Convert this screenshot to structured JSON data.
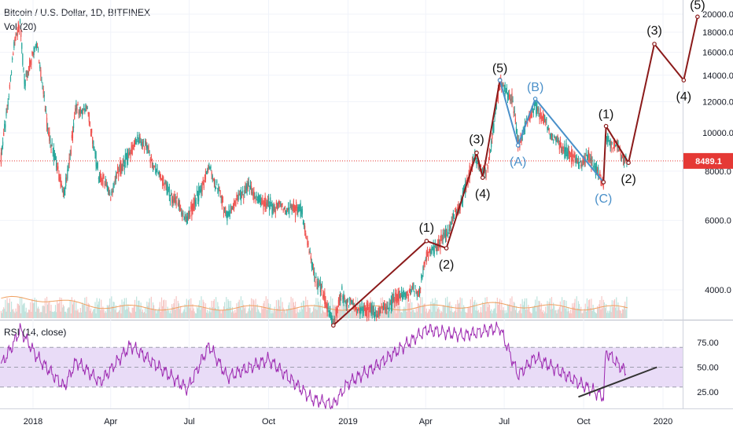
{
  "header": {
    "symbol_line": "Bitcoin / U.S. Dollar, 1D, BITFINEX",
    "volume_label": "Vol (20)",
    "rsi_label": "RSI (14, close)"
  },
  "colors": {
    "candle_up": "#26a69a",
    "candle_down": "#ef5350",
    "wave_main": "#8b1a1a",
    "wave_corrective": "#4a90c9",
    "rsi_line": "#9c27b0",
    "rsi_band": "#e9dcf7",
    "vol_ma": "#f0a060",
    "price_marker": "#e53935",
    "trendline": "#333333"
  },
  "chart_data": [
    {
      "type": "line",
      "title": "Bitcoin / U.S. Dollar, 1D, BITFINEX",
      "scale": "log",
      "ylim": [
        3200,
        20800
      ],
      "y_ticks": [
        4000,
        6000,
        8000,
        10000,
        12000,
        14000,
        16000,
        18000,
        20000
      ],
      "y_tick_labels": [
        "4000.0",
        "6000.0",
        "8000.0",
        "10000.0",
        "12000.0",
        "14000.0",
        "16000.0",
        "18000.0",
        "20000.0"
      ],
      "x_ticks": [
        "2018",
        "Apr",
        "Jul",
        "Oct",
        "2019",
        "Apr",
        "Jul",
        "Oct",
        "2020"
      ],
      "x_tick_dates": [
        "2018-01-01",
        "2018-04-01",
        "2018-07-01",
        "2018-10-01",
        "2019-01-01",
        "2019-04-01",
        "2019-07-01",
        "2019-10-01",
        "2020-01-01"
      ],
      "price_series": {
        "name": "BTCUSD",
        "x": [
          "2017-11-25",
          "2017-12-10",
          "2017-12-17",
          "2017-12-22",
          "2018-01-06",
          "2018-01-17",
          "2018-02-06",
          "2018-02-20",
          "2018-03-05",
          "2018-03-18",
          "2018-04-01",
          "2018-04-12",
          "2018-05-05",
          "2018-06-01",
          "2018-06-29",
          "2018-07-25",
          "2018-08-14",
          "2018-09-05",
          "2018-09-25",
          "2018-10-15",
          "2018-11-08",
          "2018-11-20",
          "2018-12-15",
          "2018-12-25",
          "2019-01-10",
          "2019-02-07",
          "2019-03-01",
          "2019-03-25",
          "2019-04-03",
          "2019-04-20",
          "2019-05-10",
          "2019-05-28",
          "2019-06-10",
          "2019-06-26",
          "2019-07-10",
          "2019-07-17",
          "2019-08-06",
          "2019-08-29",
          "2019-09-24",
          "2019-10-10",
          "2019-10-24",
          "2019-10-26",
          "2019-11-05",
          "2019-11-20"
        ],
        "y": [
          8500,
          16500,
          19300,
          13500,
          17000,
          10500,
          6900,
          11500,
          11500,
          7900,
          7000,
          8100,
          9800,
          7500,
          6000,
          8200,
          6200,
          7300,
          6600,
          6500,
          6400,
          4600,
          3300,
          3900,
          3600,
          3500,
          3850,
          4050,
          4950,
          5300,
          6500,
          8700,
          7800,
          13400,
          12200,
          9400,
          11800,
          9600,
          8400,
          8600,
          7400,
          9800,
          9400,
          8500
        ]
      },
      "last_price_label": "8489.1",
      "last_price": 8489.1,
      "wave_count_main": {
        "points": [
          {
            "label": "",
            "date": "2018-12-15",
            "price": 3250
          },
          {
            "label": "(1)",
            "date": "2019-04-02",
            "price": 5320
          },
          {
            "label": "(2)",
            "date": "2019-04-25",
            "price": 5100
          },
          {
            "label": "(3)",
            "date": "2019-05-30",
            "price": 8900
          },
          {
            "label": "(4)",
            "date": "2019-06-06",
            "price": 7700
          },
          {
            "label": "(5)",
            "date": "2019-06-26",
            "price": 13600
          }
        ]
      },
      "wave_count_corrective": {
        "points": [
          {
            "label": "(5)",
            "date": "2019-06-26",
            "price": 13600
          },
          {
            "label": "(A)",
            "date": "2019-07-17",
            "price": 9300
          },
          {
            "label": "(B)",
            "date": "2019-08-06",
            "price": 12200
          },
          {
            "label": "(C)",
            "date": "2019-10-24",
            "price": 7500
          }
        ]
      },
      "wave_count_projection": {
        "points": [
          {
            "label": "(C)",
            "date": "2019-10-24",
            "price": 7500
          },
          {
            "label": "(1)",
            "date": "2019-10-27",
            "price": 10400
          },
          {
            "label": "(2)",
            "date": "2019-11-22",
            "price": 8400
          },
          {
            "label": "(3)",
            "date": "2019-12-22",
            "price": 16800
          },
          {
            "label": "(4)",
            "date": "2020-01-25",
            "price": 13600
          },
          {
            "label": "(5)",
            "date": "2020-02-10",
            "price": 19700
          }
        ]
      }
    },
    {
      "type": "line",
      "title": "RSI (14, close)",
      "ylim": [
        10,
        95
      ],
      "y_ticks": [
        25,
        50,
        75
      ],
      "y_tick_labels": [
        "25.00",
        "50.00",
        "75.00"
      ],
      "band": [
        30,
        70
      ],
      "rsi_series": {
        "name": "RSI",
        "x": [
          "2017-11-25",
          "2017-12-10",
          "2017-12-17",
          "2018-01-06",
          "2018-02-06",
          "2018-02-20",
          "2018-03-20",
          "2018-04-24",
          "2018-06-29",
          "2018-07-24",
          "2018-08-14",
          "2018-10-01",
          "2018-11-20",
          "2018-12-15",
          "2019-01-01",
          "2019-02-01",
          "2019-04-02",
          "2019-05-15",
          "2019-06-26",
          "2019-07-17",
          "2019-08-06",
          "2019-09-26",
          "2019-10-24",
          "2019-10-27",
          "2019-11-20"
        ],
        "y": [
          52,
          75,
          88,
          60,
          30,
          56,
          35,
          72,
          28,
          72,
          40,
          58,
          18,
          12,
          34,
          50,
          88,
          82,
          90,
          42,
          60,
          34,
          20,
          66,
          44
        ]
      },
      "trendline": {
        "from": {
          "date": "2019-09-25",
          "value": 20
        },
        "to": {
          "date": "2019-12-25",
          "value": 50
        }
      }
    }
  ]
}
